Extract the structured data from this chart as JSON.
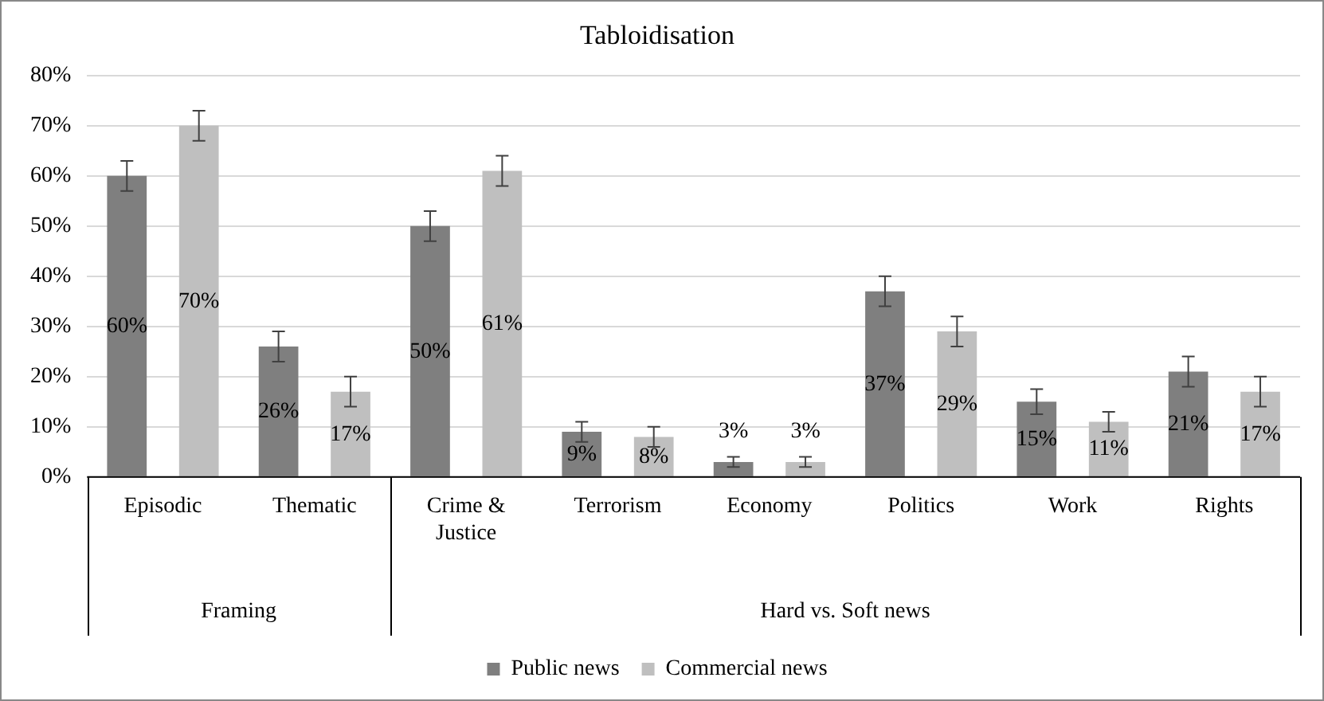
{
  "chart_data": {
    "type": "bar",
    "title": "Tabloidisation",
    "categories": [
      "Episodic",
      "Thematic",
      "Crime & Justice",
      "Terrorism",
      "Economy",
      "Politics",
      "Work",
      "Rights"
    ],
    "series": [
      {
        "name": "Public news",
        "color": "#7f7f7f",
        "values": [
          60,
          26,
          50,
          9,
          3,
          37,
          15,
          21
        ],
        "errors": [
          3,
          3,
          3,
          2,
          1,
          3,
          2.5,
          3
        ],
        "value_labels": [
          "60%",
          "26%",
          "50%",
          "9%",
          "3%",
          "37%",
          "15%",
          "21%"
        ]
      },
      {
        "name": "Commercial news",
        "color": "#bfbfbf",
        "values": [
          70,
          17,
          61,
          8,
          3,
          29,
          11,
          17
        ],
        "errors": [
          3,
          3,
          3,
          2,
          1,
          3,
          2,
          3
        ],
        "value_labels": [
          "70%",
          "17%",
          "61%",
          "8%",
          "3%",
          "29%",
          "11%",
          "17%"
        ]
      }
    ],
    "ylim": [
      0,
      80
    ],
    "yticks": [
      {
        "value": 0,
        "label": "0%"
      },
      {
        "value": 10,
        "label": "10%"
      },
      {
        "value": 20,
        "label": "20%"
      },
      {
        "value": 30,
        "label": "30%"
      },
      {
        "value": 40,
        "label": "40%"
      },
      {
        "value": 50,
        "label": "50%"
      },
      {
        "value": 60,
        "label": "60%"
      },
      {
        "value": 70,
        "label": "70%"
      },
      {
        "value": 80,
        "label": "80%"
      }
    ],
    "grid": "y",
    "legend": "bottom",
    "annotations": [
      "Framing",
      "Hard vs. Soft news"
    ]
  }
}
